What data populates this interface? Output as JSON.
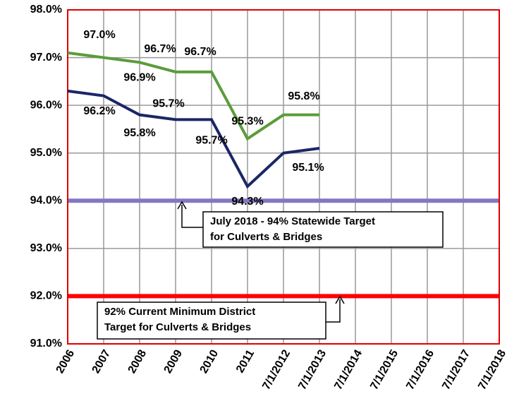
{
  "chart_data": {
    "type": "line",
    "categories": [
      "2006",
      "2007",
      "2008",
      "2009",
      "2010",
      "2011",
      "7/1/2012",
      "7/1/2013",
      "7/1/2014",
      "7/1/2015",
      "7/1/2016",
      "7/1/2017",
      "7/1/2018"
    ],
    "series": [
      {
        "color": "#5b9c3a",
        "values": [
          97.1,
          97.0,
          96.9,
          96.7,
          96.7,
          95.3,
          95.8,
          95.8,
          null,
          null,
          null,
          null,
          null
        ],
        "value_labels": [
          null,
          "97.0%",
          "96.9%",
          "96.7%",
          "96.7%",
          "95.3%",
          null,
          "95.8%",
          null,
          null,
          null,
          null,
          null
        ]
      },
      {
        "color": "#1b2666",
        "values": [
          96.3,
          96.2,
          95.8,
          95.7,
          95.7,
          94.3,
          95.0,
          95.1,
          null,
          null,
          null,
          null,
          null
        ],
        "value_labels": [
          null,
          "96.2%",
          "95.8%",
          "95.7%",
          "95.7%",
          "94.3%",
          null,
          "95.1%",
          null,
          null,
          null,
          null,
          null
        ]
      }
    ],
    "ylim": [
      91,
      98
    ],
    "yticks": [
      {
        "value": 91,
        "label": "91.0%"
      },
      {
        "value": 92,
        "label": "92.0%"
      },
      {
        "value": 93,
        "label": "93.0%"
      },
      {
        "value": 94,
        "label": "94.0%"
      },
      {
        "value": 95,
        "label": "95.0%"
      },
      {
        "value": 96,
        "label": "96.0%"
      },
      {
        "value": 97,
        "label": "97.0%"
      },
      {
        "value": 98,
        "label": "98.0%"
      }
    ],
    "grid": true,
    "reference_lines": [
      {
        "value": 94,
        "color": "#8478c4",
        "lines": [
          "July 2018 - 94%  Statewide Target",
          "for Culverts & Bridges"
        ]
      },
      {
        "value": 92,
        "color": "#ff0000",
        "lines": [
          "92%  Current Minimum  District",
          "Target for Culverts & Bridges"
        ]
      }
    ]
  }
}
